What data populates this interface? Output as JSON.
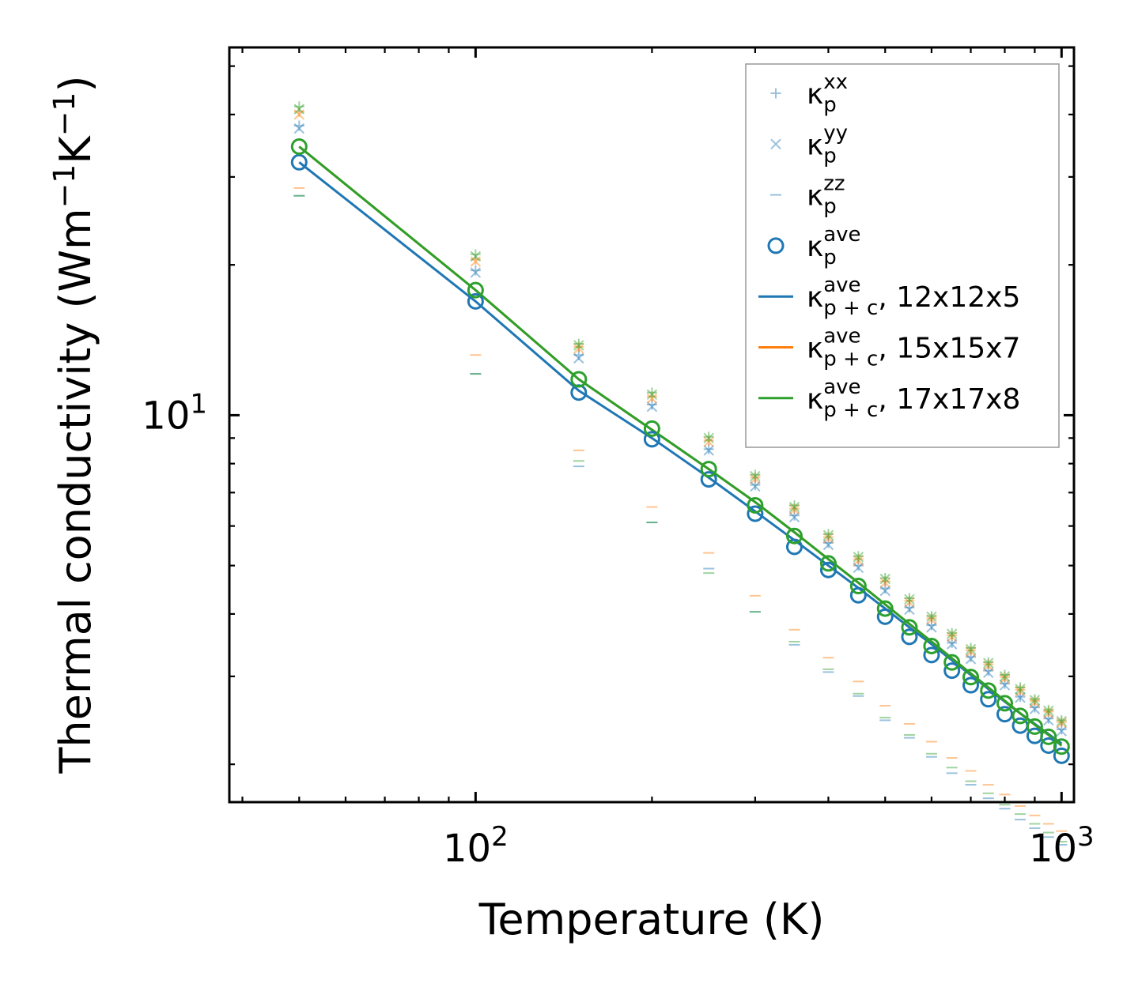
{
  "chart_data": {
    "type": "scatter",
    "title": "",
    "xlabel": "Temperature (K)",
    "ylabel": "Thermal conductivity (Wm",
    "ylabel_exp1": "−1",
    "ylabel_mid": "K",
    "ylabel_exp2": "−1",
    "ylabel_end": ")",
    "xscale": "log",
    "yscale": "log",
    "xlim": [
      38,
      1050
    ],
    "ylim": [
      1.68,
      54.5
    ],
    "xticks": [
      {
        "value": 100,
        "base": "10",
        "exp": "2"
      },
      {
        "value": 1000,
        "base": "10",
        "exp": "3"
      }
    ],
    "yticks": [
      {
        "value": 10,
        "base": "10",
        "exp": "1"
      }
    ],
    "grid": false,
    "legend_position": "top-right",
    "colors": {
      "blue": "#1f77b4",
      "orange": "#ff7f0e",
      "green": "#2ca02c"
    },
    "x": [
      50,
      100,
      150,
      200,
      250,
      300,
      350,
      400,
      450,
      500,
      550,
      600,
      650,
      700,
      750,
      800,
      850,
      900,
      950,
      1000
    ],
    "series": [
      {
        "name": "κp^xx",
        "marker": "plus",
        "alpha": 0.45,
        "color_by_mesh": true
      },
      {
        "name": "κp^yy",
        "marker": "x",
        "alpha": 0.45,
        "color_by_mesh": true
      },
      {
        "name": "κp^zz",
        "marker": "hline",
        "alpha": 0.45,
        "color_by_mesh": true
      },
      {
        "name": "κp^ave",
        "marker": "circle",
        "alpha": 1.0,
        "color_by_mesh": true
      },
      {
        "name": "κp+c^ave, 12x12x5",
        "marker": "line",
        "color": "#1f77b4"
      },
      {
        "name": "κp+c^ave, 15x15x7",
        "marker": "line",
        "color": "#ff7f0e"
      },
      {
        "name": "κp+c^ave, 17x17x8",
        "marker": "line",
        "color": "#2ca02c"
      }
    ],
    "meshes": [
      {
        "label": "12x12x5",
        "color": "#1f77b4",
        "kxx": [
          38.0,
          19.5,
          13.2,
          10.5,
          8.55,
          7.25,
          6.3,
          5.55,
          5.0,
          4.5,
          4.12,
          3.8,
          3.5,
          3.28,
          3.08,
          2.9,
          2.73,
          2.6,
          2.47,
          2.35
        ],
        "kyy": [
          37.5,
          19.3,
          13.0,
          10.4,
          8.5,
          7.2,
          6.25,
          5.5,
          4.95,
          4.45,
          4.08,
          3.76,
          3.48,
          3.25,
          3.05,
          2.88,
          2.72,
          2.58,
          2.45,
          2.33
        ],
        "kzz": [
          27.5,
          12.1,
          7.9,
          6.1,
          4.93,
          4.04,
          3.47,
          3.06,
          2.74,
          2.45,
          2.26,
          2.07,
          1.92,
          1.82,
          1.71,
          1.63,
          1.55,
          1.49,
          1.43,
          1.38
        ],
        "kave": [
          32.1,
          16.9,
          11.1,
          8.95,
          7.44,
          6.35,
          5.45,
          4.9,
          4.36,
          3.95,
          3.6,
          3.31,
          3.08,
          2.88,
          2.7,
          2.52,
          2.39,
          2.28,
          2.18,
          2.08
        ],
        "kpc": [
          32.1,
          16.9,
          11.2,
          9.0,
          7.5,
          6.42,
          5.62,
          5.0,
          4.51,
          4.1,
          3.76,
          3.48,
          3.23,
          3.02,
          2.83,
          2.67,
          2.53,
          2.41,
          2.3,
          2.2
        ]
      },
      {
        "label": "15x15x7",
        "color": "#ff7f0e",
        "kxx": [
          40.5,
          20.5,
          13.7,
          10.9,
          8.9,
          7.5,
          6.5,
          5.7,
          5.15,
          4.65,
          4.25,
          3.92,
          3.62,
          3.38,
          3.17,
          2.99,
          2.82,
          2.68,
          2.55,
          2.43
        ],
        "kyy": [
          40.0,
          20.3,
          13.6,
          10.8,
          8.85,
          7.45,
          6.48,
          5.68,
          5.12,
          4.62,
          4.22,
          3.9,
          3.6,
          3.36,
          3.15,
          2.97,
          2.8,
          2.66,
          2.53,
          2.42
        ],
        "kzz": [
          28.5,
          13.2,
          8.5,
          6.55,
          5.3,
          4.35,
          3.72,
          3.27,
          2.93,
          2.62,
          2.41,
          2.22,
          2.06,
          1.94,
          1.82,
          1.74,
          1.65,
          1.58,
          1.52,
          1.47
        ],
        "kave": [
          34.5,
          17.8,
          11.8,
          9.4,
          7.8,
          6.6,
          5.73,
          5.05,
          4.55,
          4.1,
          3.76,
          3.45,
          3.2,
          2.99,
          2.81,
          2.65,
          2.5,
          2.38,
          2.27,
          2.17
        ],
        "kpc": [
          34.5,
          17.8,
          11.8,
          9.35,
          7.8,
          6.7,
          5.83,
          5.15,
          4.62,
          4.18,
          3.82,
          3.52,
          3.26,
          3.04,
          2.85,
          2.68,
          2.53,
          2.4,
          2.29,
          2.18
        ]
      },
      {
        "label": "17x17x8",
        "color": "#2ca02c",
        "kxx": [
          41.5,
          21.0,
          13.9,
          11.1,
          9.05,
          7.6,
          6.6,
          5.78,
          5.22,
          4.72,
          4.3,
          3.96,
          3.66,
          3.42,
          3.2,
          3.02,
          2.85,
          2.7,
          2.57,
          2.45
        ],
        "kyy": [
          41.0,
          20.8,
          13.8,
          11.0,
          9.0,
          7.55,
          6.55,
          5.75,
          5.2,
          4.7,
          4.28,
          3.95,
          3.65,
          3.4,
          3.19,
          3.0,
          2.83,
          2.69,
          2.56,
          2.44
        ],
        "kzz": [
          27.5,
          12.1,
          8.1,
          6.1,
          4.83,
          4.04,
          3.52,
          3.1,
          2.77,
          2.48,
          2.29,
          2.1,
          1.97,
          1.85,
          1.75,
          1.66,
          1.59,
          1.52,
          1.46,
          1.4
        ],
        "kave": [
          34.5,
          17.8,
          11.8,
          9.4,
          7.8,
          6.6,
          5.73,
          5.05,
          4.55,
          4.1,
          3.76,
          3.45,
          3.2,
          2.99,
          2.81,
          2.65,
          2.5,
          2.38,
          2.27,
          2.17
        ],
        "kpc": [
          34.5,
          17.8,
          11.8,
          9.35,
          7.8,
          6.7,
          5.83,
          5.15,
          4.62,
          4.18,
          3.82,
          3.52,
          3.26,
          3.04,
          2.85,
          2.68,
          2.53,
          2.4,
          2.29,
          2.18
        ]
      }
    ],
    "legend": [
      {
        "kind": "plus",
        "color": "#1f77b4",
        "alpha": 0.45,
        "sym": "κ",
        "sub": "p",
        "sup": "xx",
        "suffix": ""
      },
      {
        "kind": "x",
        "color": "#1f77b4",
        "alpha": 0.45,
        "sym": "κ",
        "sub": "p",
        "sup": "yy",
        "suffix": ""
      },
      {
        "kind": "hline",
        "color": "#1f77b4",
        "alpha": 0.45,
        "sym": "κ",
        "sub": "p",
        "sup": "zz",
        "suffix": ""
      },
      {
        "kind": "circle",
        "color": "#1f77b4",
        "alpha": 1.0,
        "sym": "κ",
        "sub": "p",
        "sup": "ave",
        "suffix": ""
      },
      {
        "kind": "line",
        "color": "#1f77b4",
        "alpha": 1.0,
        "sym": "κ",
        "sub": "p + c",
        "sup": "ave",
        "suffix": ", 12x12x5"
      },
      {
        "kind": "line",
        "color": "#ff7f0e",
        "alpha": 1.0,
        "sym": "κ",
        "sub": "p + c",
        "sup": "ave",
        "suffix": ", 15x15x7"
      },
      {
        "kind": "line",
        "color": "#2ca02c",
        "alpha": 1.0,
        "sym": "κ",
        "sub": "p + c",
        "sup": "ave",
        "suffix": ", 17x17x8"
      }
    ]
  }
}
